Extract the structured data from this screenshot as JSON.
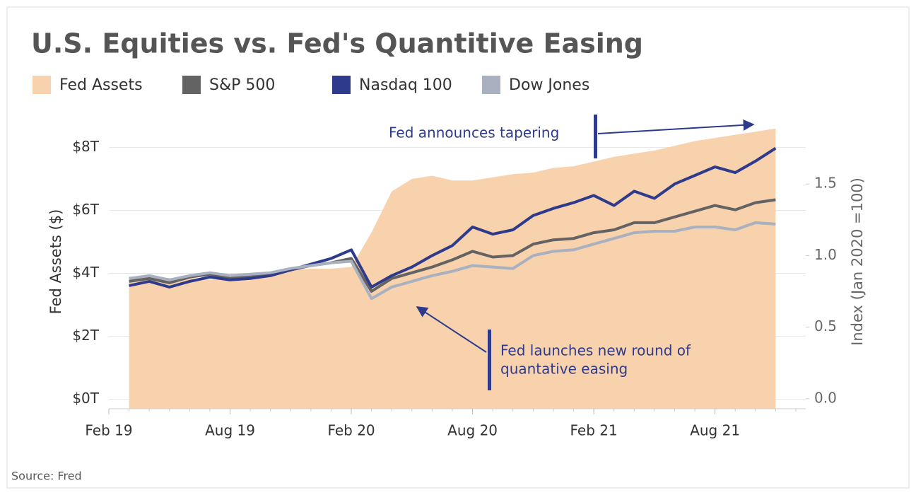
{
  "chart_data": {
    "type": "line",
    "title": "U.S. Equities vs. Fed's Quantitive Easing",
    "source": "Source:  Fred",
    "ylabel": "Fed Assets ($)",
    "y2label": "Index (Jan 2020 =100)",
    "x": [
      "Mar 19",
      "Apr 19",
      "May 19",
      "Jun 19",
      "Jul 19",
      "Aug 19",
      "Sep 19",
      "Oct 19",
      "Nov 19",
      "Dec 19",
      "Jan 20",
      "Feb 20",
      "Mar 20",
      "Apr 20",
      "May 20",
      "Jun 20",
      "Jul 20",
      "Aug 20",
      "Sep 20",
      "Oct 20",
      "Nov 20",
      "Dec 20",
      "Jan 21",
      "Feb 21",
      "Mar 21",
      "Apr 21",
      "May 21",
      "Jun 21",
      "Jul 21",
      "Aug 21",
      "Sep 21",
      "Oct 21",
      "Nov 21"
    ],
    "series": [
      {
        "name": "Fed Assets",
        "type": "area",
        "color": "#f8d2ac",
        "values": [
          3.9,
          3.9,
          3.85,
          3.85,
          3.8,
          3.8,
          3.9,
          4.0,
          4.1,
          4.15,
          4.15,
          4.2,
          5.3,
          6.6,
          7.0,
          7.1,
          6.95,
          6.95,
          7.05,
          7.15,
          7.2,
          7.35,
          7.4,
          7.55,
          7.7,
          7.8,
          7.9,
          8.05,
          8.2,
          8.3,
          8.4,
          8.5,
          8.6
        ]
      },
      {
        "name": "S&P 500",
        "color": "#636363",
        "axis": "y2",
        "values": [
          0.82,
          0.84,
          0.81,
          0.85,
          0.87,
          0.84,
          0.86,
          0.87,
          0.9,
          0.93,
          0.95,
          0.98,
          0.75,
          0.84,
          0.88,
          0.92,
          0.97,
          1.03,
          0.99,
          1.0,
          1.08,
          1.11,
          1.12,
          1.16,
          1.18,
          1.23,
          1.23,
          1.27,
          1.31,
          1.35,
          1.32,
          1.37,
          1.39
        ]
      },
      {
        "name": "Nasdaq 100",
        "color": "#2e3a8c",
        "axis": "y2",
        "values": [
          0.79,
          0.82,
          0.78,
          0.82,
          0.85,
          0.83,
          0.84,
          0.86,
          0.9,
          0.94,
          0.98,
          1.04,
          0.78,
          0.86,
          0.92,
          1.0,
          1.07,
          1.2,
          1.15,
          1.18,
          1.28,
          1.33,
          1.37,
          1.42,
          1.35,
          1.45,
          1.4,
          1.5,
          1.56,
          1.62,
          1.58,
          1.66,
          1.75
        ]
      },
      {
        "name": "Dow Jones",
        "color": "#a9b0bf",
        "axis": "y2",
        "values": [
          0.84,
          0.86,
          0.83,
          0.86,
          0.88,
          0.86,
          0.87,
          0.88,
          0.91,
          0.93,
          0.95,
          0.96,
          0.7,
          0.78,
          0.82,
          0.86,
          0.89,
          0.93,
          0.92,
          0.91,
          1.0,
          1.03,
          1.04,
          1.08,
          1.12,
          1.16,
          1.17,
          1.17,
          1.2,
          1.2,
          1.18,
          1.23,
          1.22
        ]
      }
    ],
    "xlim": [
      "Feb 19",
      "Dec 21"
    ],
    "xticks": [
      "Feb 19",
      "Aug 19",
      "Feb 20",
      "Aug 20",
      "Feb 21",
      "Aug 21"
    ],
    "ylim": [
      -0.3,
      9.2
    ],
    "yticks": [
      {
        "value": 0,
        "label": "$0T"
      },
      {
        "value": 2,
        "label": "$2T"
      },
      {
        "value": 4,
        "label": "$4T"
      },
      {
        "value": 6,
        "label": "$6T"
      },
      {
        "value": 8,
        "label": "$8T"
      }
    ],
    "y2lim": [
      -0.07,
      2.02
    ],
    "y2ticks": [
      {
        "value": 0,
        "label": "0.0"
      },
      0.5,
      {
        "value": 1,
        "label": "1.0"
      },
      1.5
    ],
    "grid": true,
    "annotations": [
      {
        "lines": [
          "Fed announces tapering"
        ]
      },
      {
        "lines": [
          "Fed launches new round of",
          "quantative easing"
        ]
      }
    ]
  }
}
